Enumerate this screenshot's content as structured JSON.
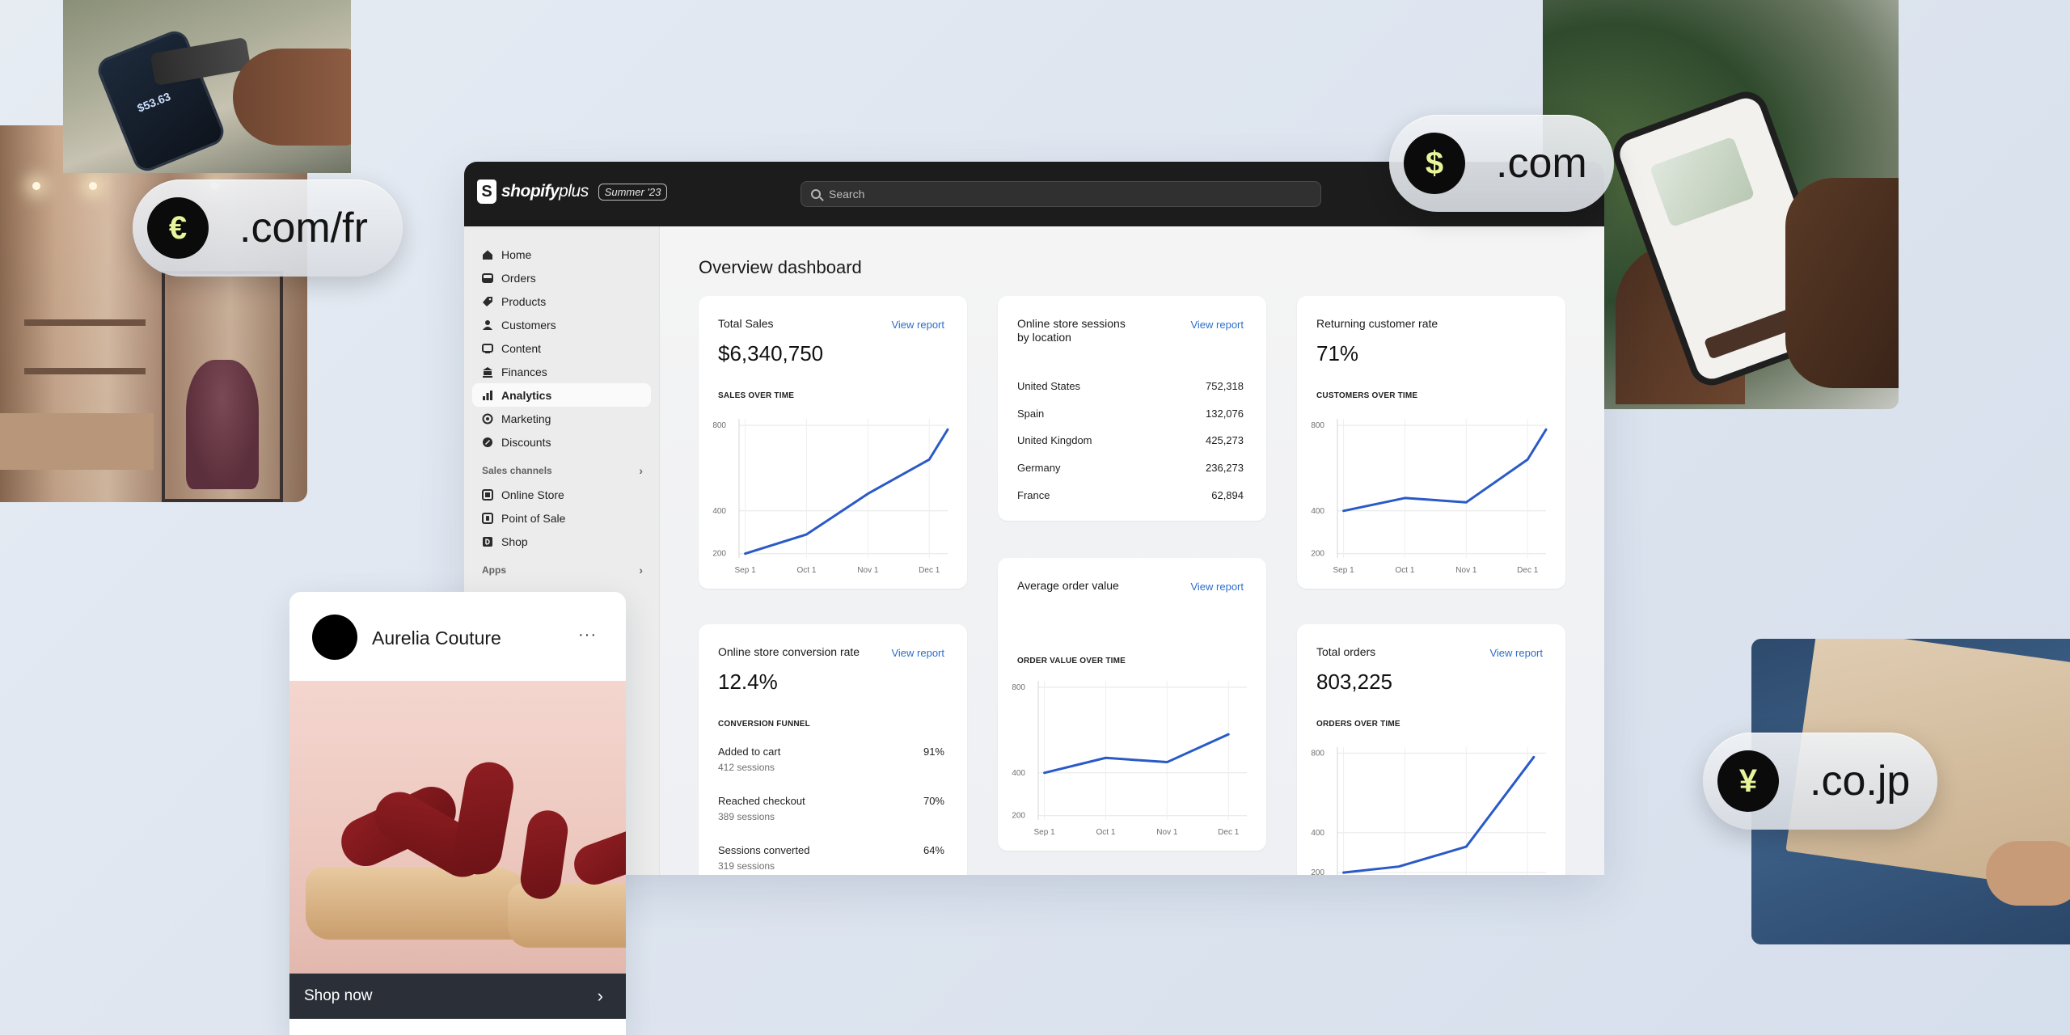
{
  "domains": [
    {
      "symbol": "€",
      "tld": ".com/fr"
    },
    {
      "symbol": "$",
      "tld": ".com"
    },
    {
      "symbol": "¥",
      "tld": ".co.jp"
    }
  ],
  "photos": {
    "pay_amount": "$53.63"
  },
  "admin": {
    "logo_word": "shopify",
    "logo_plus": "plus",
    "edition_tag": "Summer '23",
    "search_placeholder": "Search",
    "nav": [
      {
        "label": "Home",
        "icon": "home-icon"
      },
      {
        "label": "Orders",
        "icon": "orders-icon"
      },
      {
        "label": "Products",
        "icon": "tag-icon"
      },
      {
        "label": "Customers",
        "icon": "person-icon"
      },
      {
        "label": "Content",
        "icon": "content-icon"
      },
      {
        "label": "Finances",
        "icon": "bank-icon"
      },
      {
        "label": "Analytics",
        "icon": "bar-chart-icon",
        "active": true
      },
      {
        "label": "Marketing",
        "icon": "target-icon"
      },
      {
        "label": "Discounts",
        "icon": "discount-icon"
      }
    ],
    "sales_channels_label": "Sales channels",
    "channels": [
      {
        "label": "Online Store",
        "icon": "store-icon"
      },
      {
        "label": "Point of Sale",
        "icon": "pos-icon"
      },
      {
        "label": "Shop",
        "icon": "shop-icon"
      }
    ],
    "apps_label": "Apps",
    "page_title": "Overview dashboard",
    "view_report": "View report",
    "cards": {
      "total_sales": {
        "title": "Total Sales",
        "value": "$6,340,750",
        "sub": "SALES OVER TIME"
      },
      "sessions_location": {
        "title_line1": "Online store sessions",
        "title_line2": "by location",
        "rows": [
          {
            "country": "United States",
            "count": "752,318"
          },
          {
            "country": "Spain",
            "count": "132,076"
          },
          {
            "country": "United Kingdom",
            "count": "425,273"
          },
          {
            "country": "Germany",
            "count": "236,273"
          },
          {
            "country": "France",
            "count": "62,894"
          }
        ]
      },
      "returning_rate": {
        "title": "Returning customer rate",
        "value": "71%",
        "sub": "CUSTOMERS OVER TIME"
      },
      "conversion": {
        "title": "Online store conversion rate",
        "value": "12.4%",
        "sub": "CONVERSION FUNNEL",
        "rows": [
          {
            "label": "Added to cart",
            "pct": "91%",
            "sessions": "412 sessions"
          },
          {
            "label": "Reached checkout",
            "pct": "70%",
            "sessions": "389 sessions"
          },
          {
            "label": "Sessions converted",
            "pct": "64%",
            "sessions": "319 sessions"
          }
        ]
      },
      "aov": {
        "title": "Average order value",
        "sub": "ORDER VALUE OVER TIME"
      },
      "total_orders": {
        "title": "Total orders",
        "value": "803,225",
        "sub": "ORDERS OVER TIME"
      }
    }
  },
  "post": {
    "brand": "Aurelia Couture",
    "more": "···",
    "cta": "Shop now",
    "cta_arrow": "›"
  },
  "colors": {
    "line": "#2a5ac7",
    "link": "#2c6ecb",
    "topbar": "#1c1c1c",
    "coin_symbol": "#e8f59a"
  },
  "chart_data": [
    {
      "type": "line",
      "name": "total_sales",
      "categories": [
        "Sep 1",
        "Oct 1",
        "Nov 1",
        "Dec 1"
      ],
      "y_ticks": [
        200,
        400,
        800
      ],
      "series": [
        {
          "x": [
            0,
            1,
            2,
            3,
            3.3
          ],
          "values": [
            200,
            290,
            480,
            640,
            780
          ]
        }
      ],
      "x_range": [
        -0.1,
        3.3
      ],
      "y_range": [
        180,
        830
      ],
      "grid": true
    },
    {
      "type": "line",
      "name": "returning_customers",
      "categories": [
        "Sep 1",
        "Oct 1",
        "Nov 1",
        "Dec 1"
      ],
      "y_ticks": [
        200,
        400,
        800
      ],
      "series": [
        {
          "x": [
            0,
            1,
            2,
            3,
            3.3
          ],
          "values": [
            400,
            460,
            440,
            640,
            780
          ]
        }
      ],
      "x_range": [
        -0.1,
        3.3
      ],
      "y_range": [
        180,
        830
      ],
      "grid": true
    },
    {
      "type": "line",
      "name": "order_value",
      "categories": [
        "Sep 1",
        "Oct 1",
        "Nov 1",
        "Dec 1"
      ],
      "y_ticks": [
        200,
        400,
        800
      ],
      "series": [
        {
          "x": [
            0,
            1,
            2,
            3
          ],
          "values": [
            400,
            470,
            450,
            580
          ]
        }
      ],
      "x_range": [
        -0.1,
        3.3
      ],
      "y_range": [
        180,
        830
      ],
      "grid": true
    },
    {
      "type": "line",
      "name": "total_orders",
      "categories": [],
      "y_ticks": [
        200,
        400,
        800
      ],
      "series": [
        {
          "x": [
            0,
            0.9,
            2.0,
            3.1
          ],
          "values": [
            200,
            230,
            330,
            780
          ]
        }
      ],
      "x_range": [
        -0.1,
        3.3
      ],
      "y_range": [
        180,
        830
      ],
      "grid": true
    }
  ]
}
